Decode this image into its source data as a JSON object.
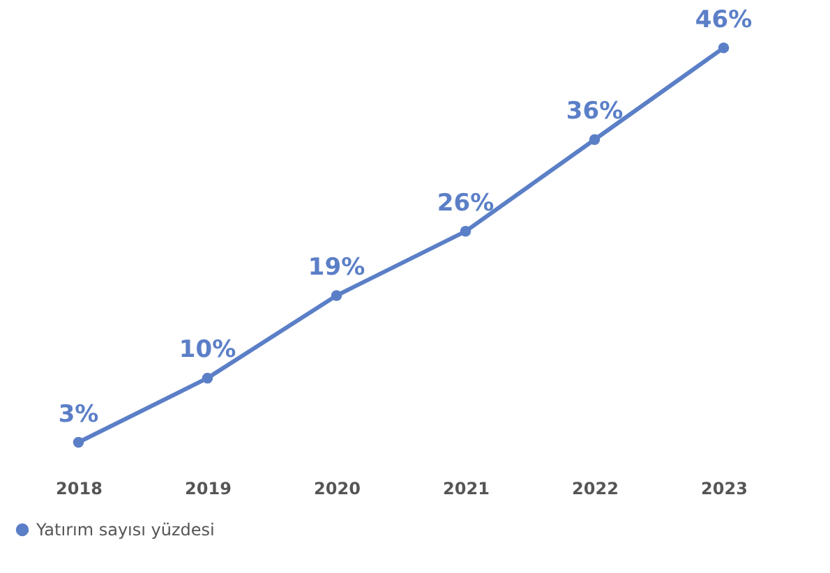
{
  "chart_data": {
    "type": "line",
    "categories": [
      "2018",
      "2019",
      "2020",
      "2021",
      "2022",
      "2023"
    ],
    "series": [
      {
        "name": "Yatırım sayısı yüzdesi",
        "color": "#5b7fc7",
        "values": [
          3,
          10,
          19,
          26,
          36,
          46
        ],
        "value_labels": [
          "3%",
          "10%",
          "19%",
          "26%",
          "36%",
          "46%"
        ]
      }
    ],
    "tick_labels": "x",
    "marker": "circle",
    "line_style": "solid",
    "legend": "bottom"
  }
}
